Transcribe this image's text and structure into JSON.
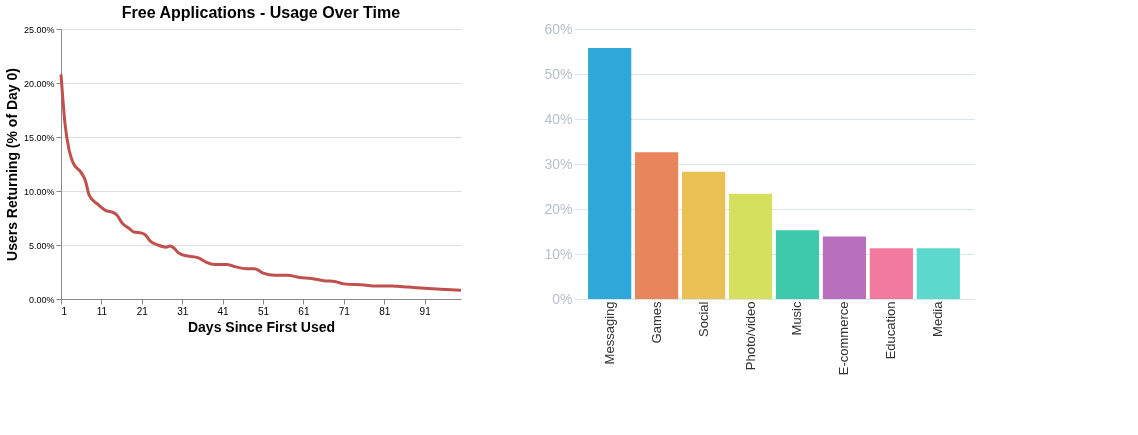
{
  "chart_data": [
    {
      "type": "line",
      "title": "Free Applications - Usage Over Time",
      "xlabel": "Days Since First Used",
      "ylabel": "Users Returning (% of Day 0)",
      "x": [
        1,
        2,
        3,
        4,
        6,
        7,
        8,
        10,
        12,
        14,
        15,
        16,
        18,
        19,
        21,
        22,
        23,
        25,
        27,
        28,
        29,
        30,
        32,
        34,
        35,
        37,
        39,
        42,
        44,
        47,
        49,
        51,
        54,
        57,
        60,
        63,
        66,
        69,
        71,
        76,
        79,
        83,
        87,
        91,
        95,
        100
      ],
      "series": [
        {
          "color": "#c0504d",
          "values": [
            20.8,
            16.2,
            13.8,
            12.6,
            11.7,
            11.0,
            9.6,
            8.8,
            8.2,
            8.0,
            7.7,
            7.1,
            6.5,
            6.2,
            6.1,
            5.9,
            5.4,
            5.0,
            4.8,
            4.9,
            4.7,
            4.3,
            4.0,
            3.9,
            3.8,
            3.4,
            3.2,
            3.2,
            3.0,
            2.8,
            2.8,
            2.4,
            2.2,
            2.2,
            2.0,
            1.9,
            1.7,
            1.6,
            1.4,
            1.3,
            1.2,
            1.2,
            1.1,
            1.0,
            0.9,
            0.8
          ]
        }
      ],
      "xlim": [
        1,
        100
      ],
      "xticks": [
        1,
        11,
        21,
        31,
        41,
        51,
        61,
        71,
        81,
        91
      ],
      "ylim": [
        0,
        25
      ],
      "yticks": [
        {
          "value": 0,
          "label": "0.00%"
        },
        {
          "value": 5,
          "label": "5.00%"
        },
        {
          "value": 10,
          "label": "10.00%"
        },
        {
          "value": 15,
          "label": "15.00%"
        },
        {
          "value": 20,
          "label": "20.00%"
        },
        {
          "value": 25,
          "label": "25.00%"
        }
      ],
      "grid": "y",
      "marker": "none",
      "line_style": "solid"
    },
    {
      "type": "bar",
      "categories": [
        "Messaging",
        "Games",
        "Social",
        "Photo/video",
        "Music",
        "E-commerce",
        "Education",
        "Media"
      ],
      "values": [
        55.8,
        32.6,
        28.3,
        23.4,
        15.3,
        13.9,
        11.3,
        11.3
      ],
      "colors": [
        "#2ea8d8",
        "#e8855a",
        "#eac052",
        "#d5e05e",
        "#3ec9ad",
        "#b86fbe",
        "#f27a9e",
        "#5cd9cc"
      ],
      "ylim": [
        0,
        60
      ],
      "yticks": [
        {
          "value": 0,
          "label": "0%"
        },
        {
          "value": 10,
          "label": "10%"
        },
        {
          "value": 20,
          "label": "20%"
        },
        {
          "value": 30,
          "label": "30%"
        },
        {
          "value": 40,
          "label": "40%"
        },
        {
          "value": 50,
          "label": "50%"
        },
        {
          "value": 60,
          "label": "60%"
        }
      ],
      "grid": "y"
    }
  ]
}
